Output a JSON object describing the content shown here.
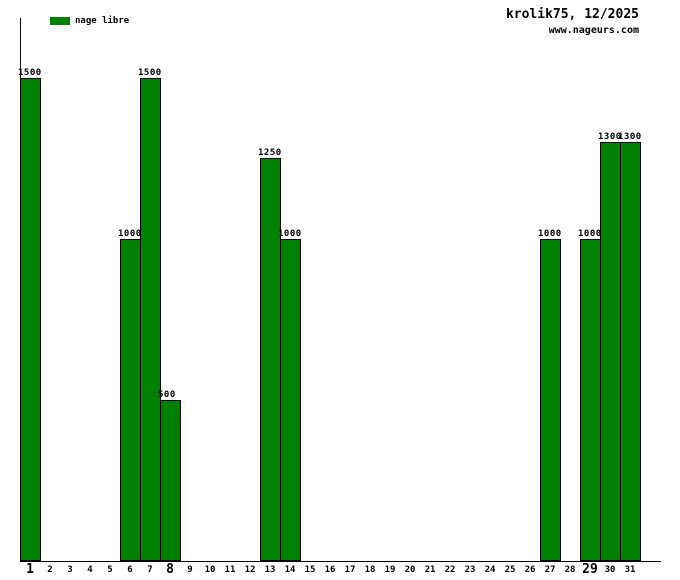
{
  "header": {
    "title": "krolik75, 12/2025",
    "website": "www.nageurs.com"
  },
  "legend": {
    "label": "nage libre",
    "color": "#008000"
  },
  "colors": {
    "bar_fill": "#008000",
    "bar_border": "#000000",
    "axis": "#000000",
    "text": "#000000",
    "background": "#ffffff"
  },
  "chart_data": {
    "type": "bar",
    "title": "krolik75, 12/2025",
    "subtitle": "www.nageurs.com",
    "legend_entries": [
      {
        "label": "nage libre",
        "color": "#008000"
      }
    ],
    "legend_position": "top-left",
    "categories": [
      "1",
      "2",
      "3",
      "4",
      "5",
      "6",
      "7",
      "8",
      "9",
      "10",
      "11",
      "12",
      "13",
      "14",
      "15",
      "16",
      "17",
      "18",
      "19",
      "20",
      "21",
      "22",
      "23",
      "24",
      "25",
      "26",
      "27",
      "28",
      "29",
      "30",
      "31"
    ],
    "series": [
      {
        "name": "nage libre",
        "values": [
          1500,
          0,
          0,
          0,
          0,
          1000,
          1500,
          500,
          0,
          0,
          0,
          0,
          1250,
          1000,
          0,
          0,
          0,
          0,
          0,
          0,
          0,
          0,
          0,
          0,
          0,
          0,
          1000,
          0,
          1000,
          1300,
          1300
        ]
      }
    ],
    "bold_categories": [
      "1",
      "8",
      "29"
    ],
    "value_labels_shown": true,
    "xlabel": "",
    "ylabel": "",
    "ylim": [
      0,
      1700
    ],
    "grid": false
  }
}
